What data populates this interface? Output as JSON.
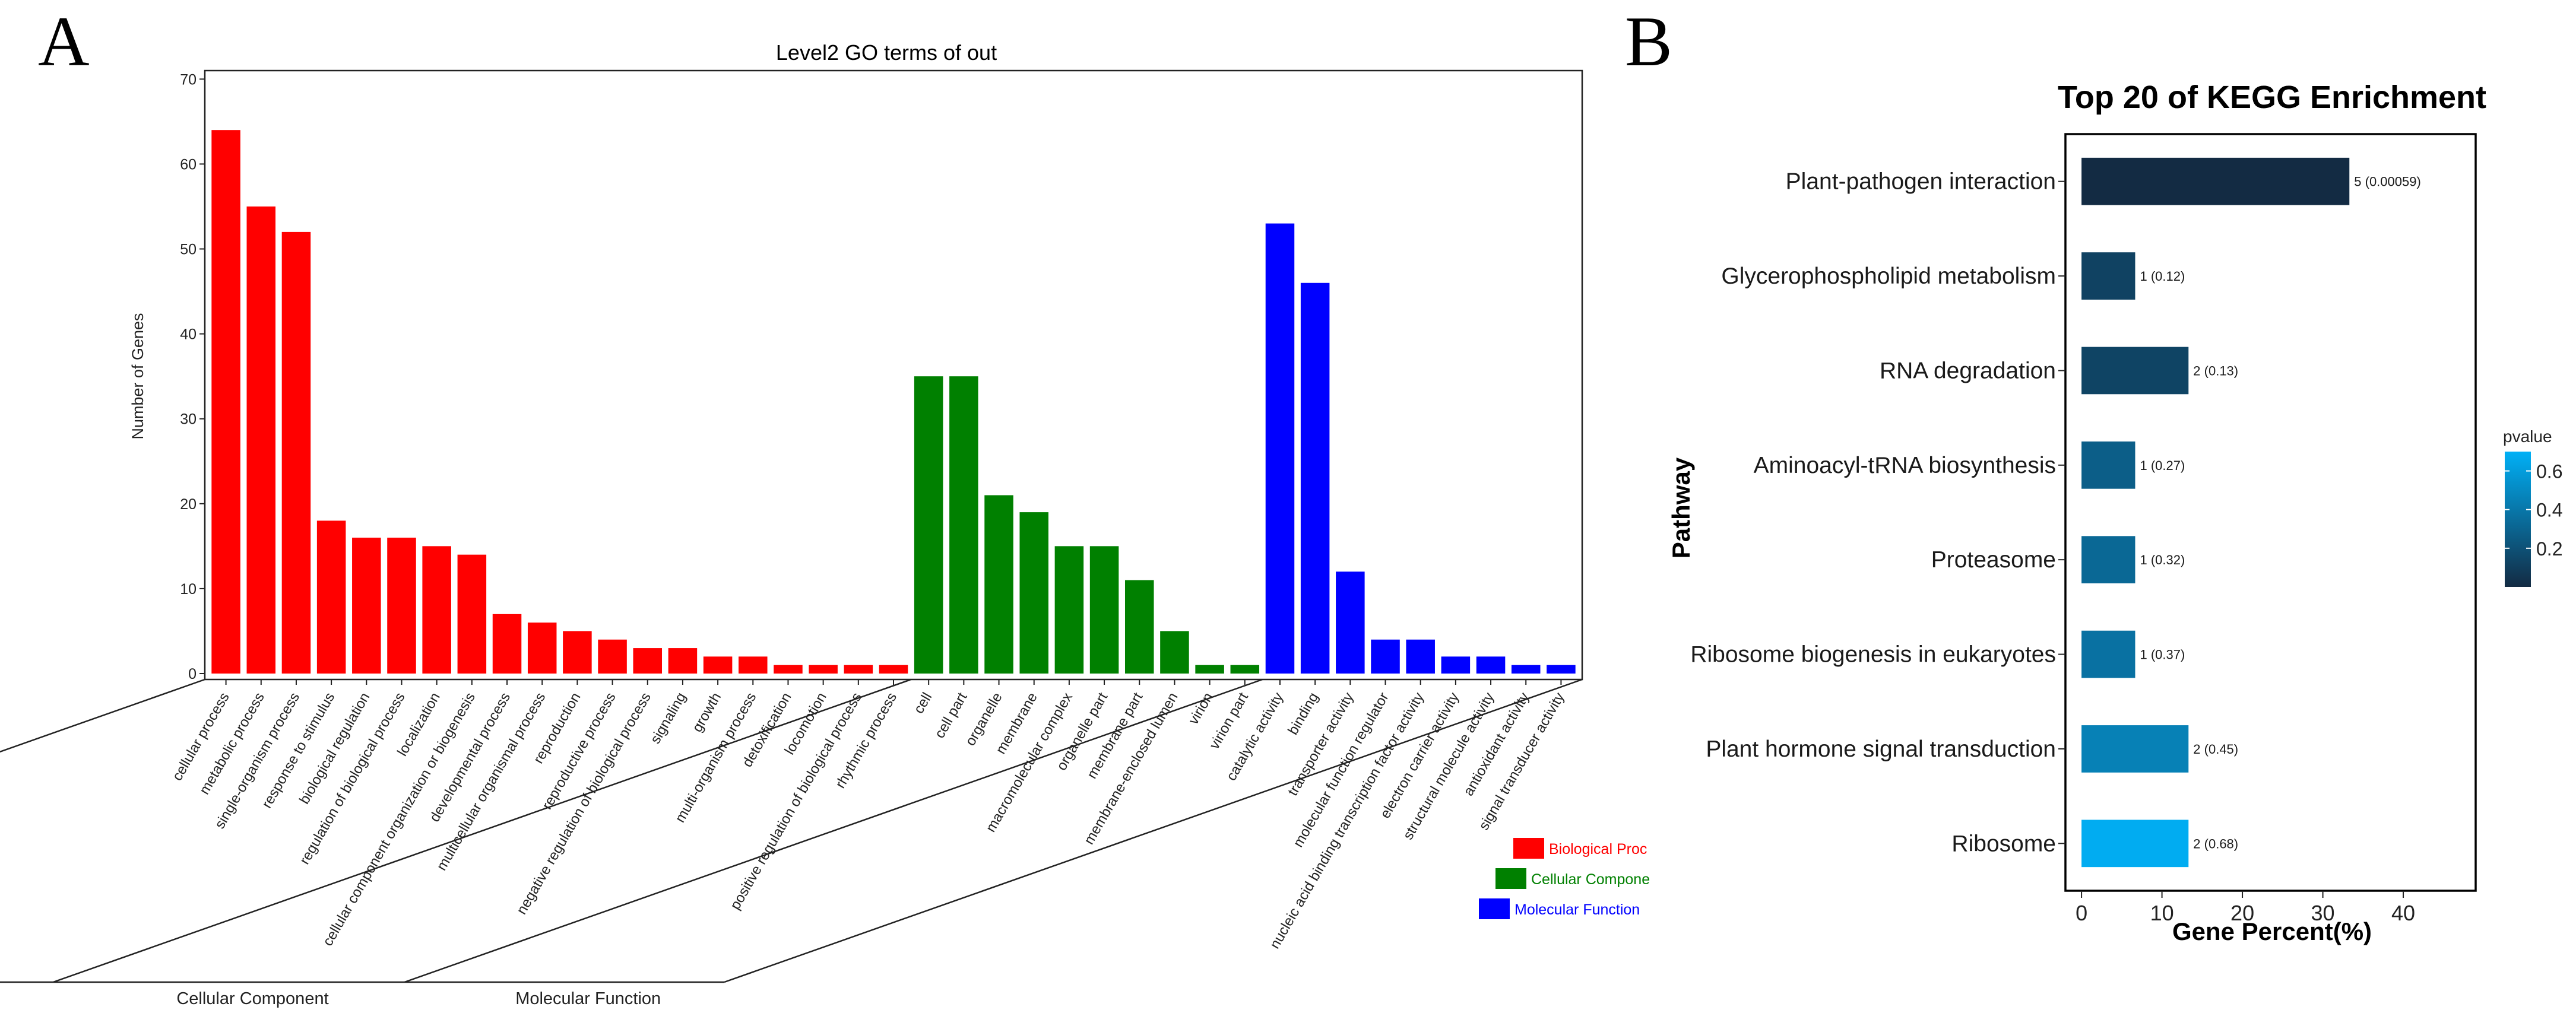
{
  "panel_a": {
    "letter": "A",
    "chart_data": {
      "type": "bar",
      "title": "Level2 GO terms of out",
      "ylabel": "Number of Genes",
      "ylim": [
        0,
        71
      ],
      "yticks": [
        0,
        10,
        20,
        30,
        40,
        50,
        60,
        70
      ],
      "groups": [
        {
          "name": "Biological Process",
          "legend_label": "Biological Proc",
          "color": "#ff0000",
          "categories": [
            "cellular process",
            "metabolic process",
            "single-organism process",
            "response to stimulus",
            "biological regulation",
            "regulation of biological process",
            "localization",
            "cellular component organization or biogenesis",
            "developmental process",
            "multicellular organismal process",
            "reproduction",
            "reproductive process",
            "negative regulation of biological process",
            "signaling",
            "growth",
            "multi-organism process",
            "detoxification",
            "locomotion",
            "positive regulation of biological process",
            "rhythmic process"
          ],
          "values": [
            64,
            55,
            52,
            18,
            16,
            16,
            15,
            14,
            7,
            6,
            5,
            4,
            3,
            3,
            2,
            2,
            1,
            1,
            1,
            1
          ]
        },
        {
          "name": "Cellular Component",
          "legend_label": "Cellular Compone",
          "color": "#008000",
          "categories": [
            "cell",
            "cell part",
            "organelle",
            "membrane",
            "macromolecular complex",
            "organelle part",
            "membrane part",
            "membrane-enclosed lumen",
            "virion",
            "virion part"
          ],
          "values": [
            35,
            35,
            21,
            19,
            15,
            15,
            11,
            5,
            1,
            1
          ]
        },
        {
          "name": "Molecular Function",
          "legend_label": "Molecular Function",
          "color": "#0000ff",
          "categories": [
            "catalytic activity",
            "binding",
            "transporter activity",
            "molecular function regulator",
            "nucleic acid binding transcription factor activity",
            "electron carrier activity",
            "structural molecule activity",
            "antioxidant activity",
            "signal transducer activity"
          ],
          "values": [
            53,
            46,
            12,
            4,
            4,
            2,
            2,
            1,
            1
          ]
        }
      ]
    }
  },
  "panel_b": {
    "letter": "B",
    "chart_data": {
      "type": "bar",
      "orientation": "horizontal",
      "title": "Top 20 of KEGG Enrichment",
      "xlabel": "Gene Percent(%)",
      "ylabel": "Pathway",
      "xlim": [
        -2,
        49
      ],
      "xticks": [
        0,
        10,
        20,
        30,
        40
      ],
      "categories": [
        "Plant-pathogen interaction",
        "Glycerophospholipid metabolism",
        "RNA degradation",
        "Aminoacyl-tRNA biosynthesis",
        "Proteasome",
        "Ribosome biogenesis in eukaryotes",
        "Plant hormone signal transduction",
        "Ribosome"
      ],
      "values": [
        33.3,
        6.67,
        13.3,
        6.67,
        6.67,
        6.67,
        13.3,
        13.3
      ],
      "bar_labels": [
        "5 (0.00059)",
        "1 (0.12)",
        "2 (0.13)",
        "1 (0.27)",
        "1 (0.32)",
        "1 (0.37)",
        "2 (0.45)",
        "2 (0.68)"
      ],
      "pvalues": [
        0.00059,
        0.12,
        0.13,
        0.27,
        0.32,
        0.37,
        0.45,
        0.68
      ],
      "colorbar": {
        "title": "pvalue",
        "ticks": [
          0.2,
          0.4,
          0.6
        ],
        "range": [
          0,
          0.7
        ],
        "low_color": "#132b43",
        "high_color": "#00b0f6"
      }
    }
  }
}
